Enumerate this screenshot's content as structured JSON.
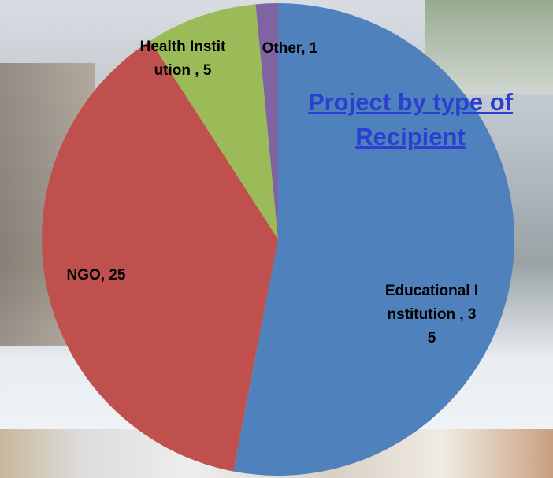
{
  "chart_data": {
    "type": "pie",
    "title": "Project by type of Recipient",
    "values": [
      35,
      25,
      5,
      1
    ],
    "value_labels": [
      "Educational Institution , 35",
      "NGO, 25",
      "Health Institution , 5",
      "Other, 1"
    ],
    "colors": [
      "#4f81bd",
      "#c0504d",
      "#9bbb59",
      "#8064a2"
    ]
  }
}
